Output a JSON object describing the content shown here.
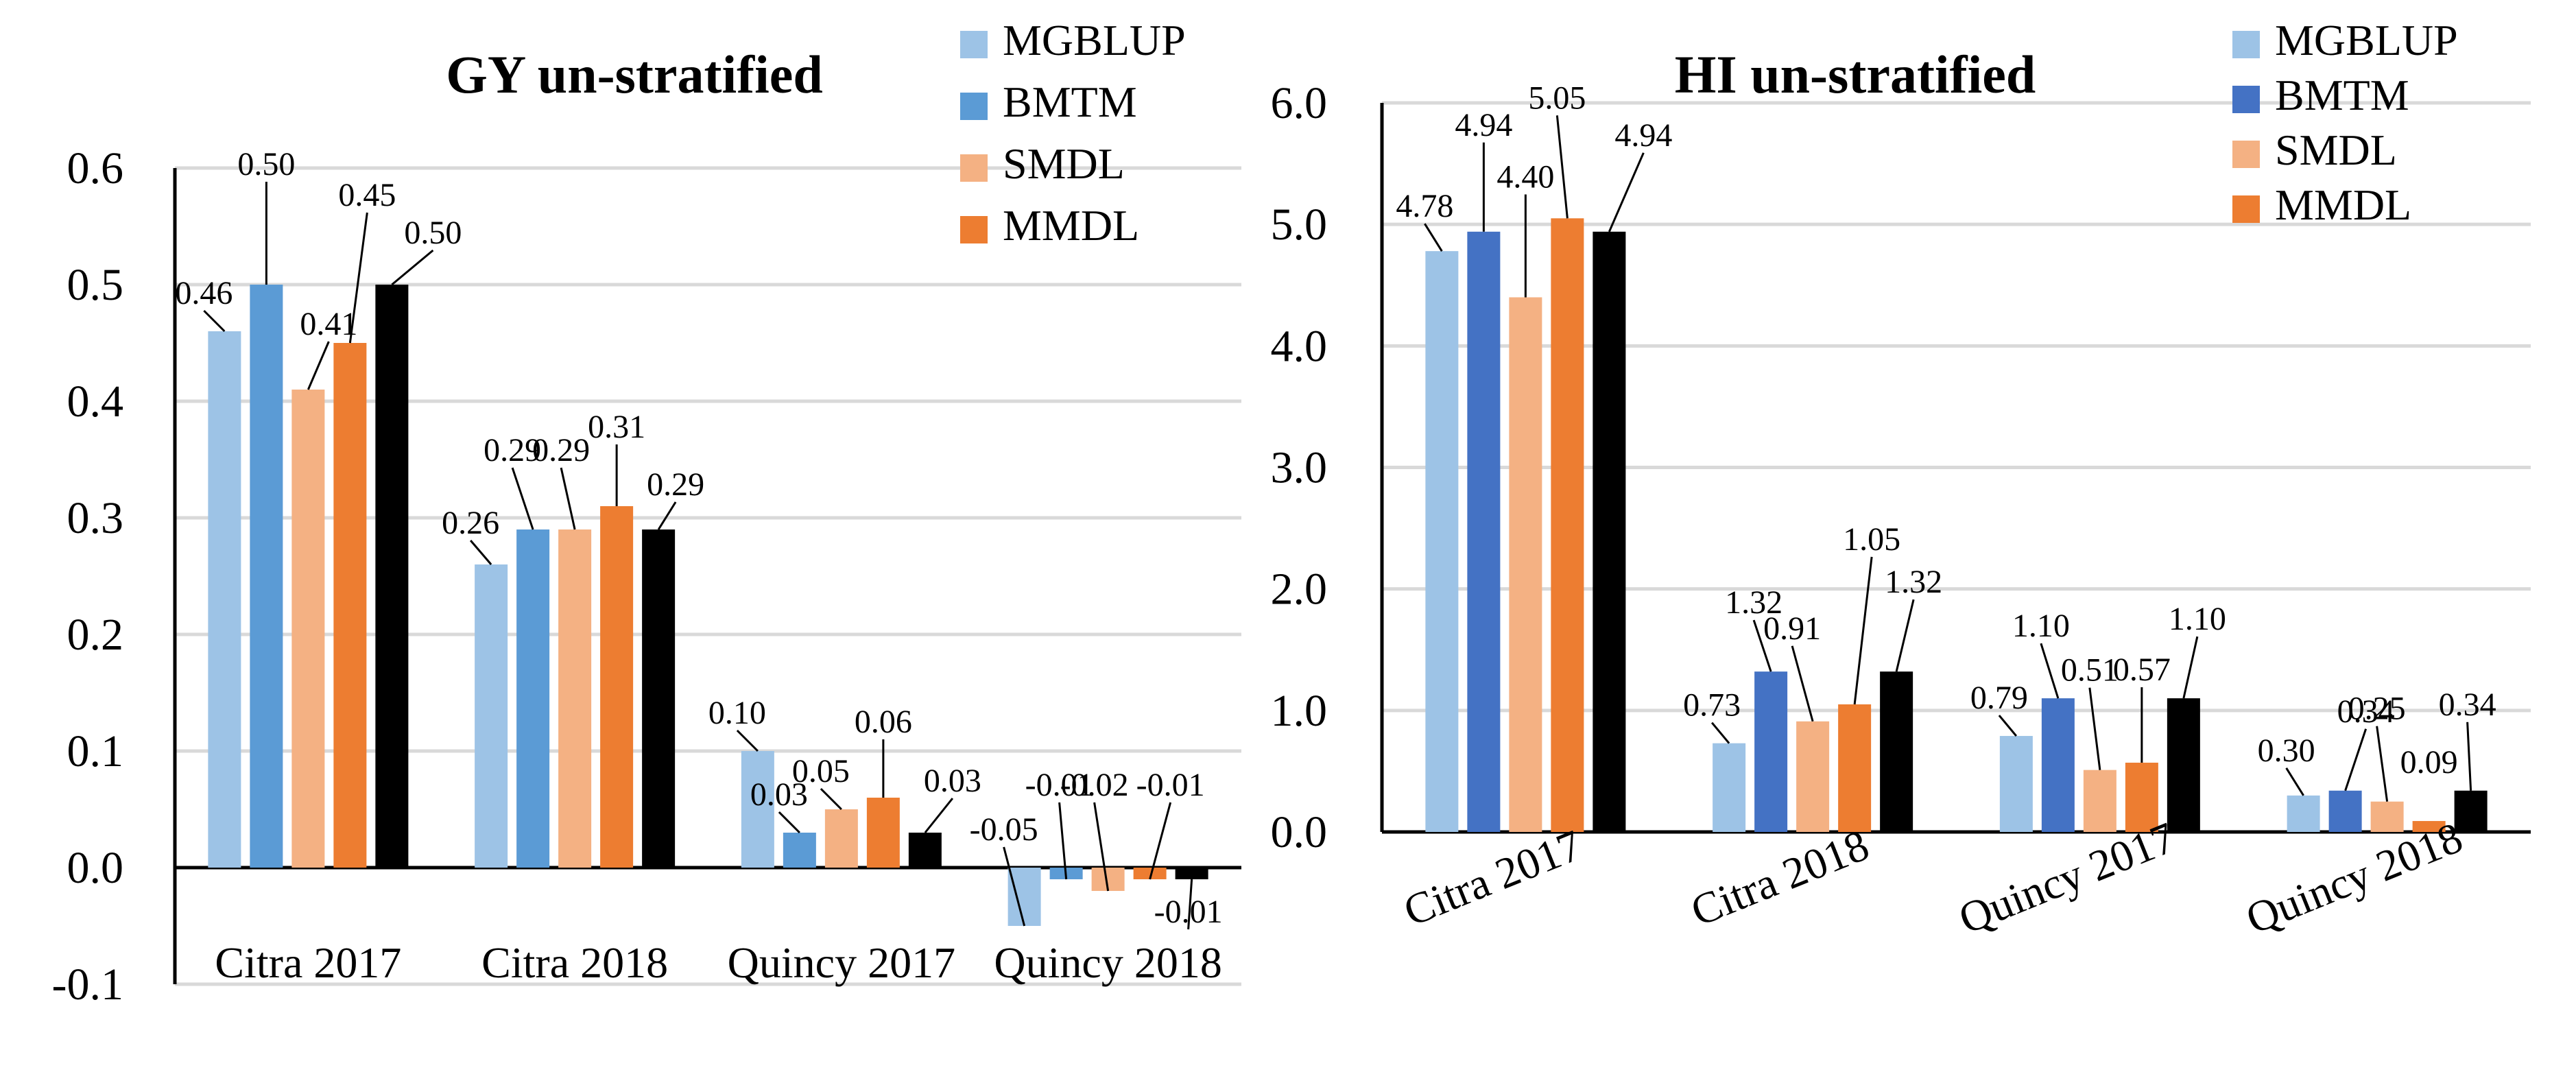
{
  "colors": {
    "MGBLUP": "#9dc3e6",
    "BMTM_left": "#5b9bd5",
    "BMTM_right": "#4472c4",
    "SMDL": "#f4b183",
    "MMDL": "#ed7d31",
    "fifth": "#000000"
  },
  "chart_data": [
    {
      "type": "bar",
      "title": "GY un-stratified",
      "categories": [
        "Citra 2017",
        "Citra 2018",
        "Quincy 2017",
        "Quincy 2018"
      ],
      "legend": [
        "MGBLUP",
        "BMTM",
        "SMDL",
        "MMDL"
      ],
      "legend_position": "top-right",
      "xlabel": "",
      "ylabel": "",
      "ylim": [
        -0.1,
        0.6
      ],
      "y_ticks": [
        "-0.1",
        "0.0",
        "0.1",
        "0.2",
        "0.3",
        "0.4",
        "0.5",
        "0.6"
      ],
      "grid": true,
      "series": [
        {
          "name": "MGBLUP",
          "values": [
            0.46,
            0.26,
            0.1,
            -0.05
          ],
          "labels": [
            "0.46",
            "0.26",
            "0.10",
            "-0.05"
          ]
        },
        {
          "name": "BMTM",
          "values": [
            0.5,
            0.29,
            0.03,
            -0.01
          ],
          "labels": [
            "0.50",
            "0.29",
            "0.03",
            "-0.01"
          ]
        },
        {
          "name": "SMDL",
          "values": [
            0.41,
            0.29,
            0.05,
            -0.02
          ],
          "labels": [
            "0.41",
            "0.29",
            "0.05",
            "-0.02"
          ]
        },
        {
          "name": "MMDL",
          "values": [
            0.45,
            0.31,
            0.06,
            -0.01
          ],
          "labels": [
            "0.45",
            "0.31",
            "0.06",
            "-0.01"
          ]
        },
        {
          "name": "",
          "values": [
            0.5,
            0.29,
            0.03,
            -0.01
          ],
          "labels": [
            "0.50",
            "0.29",
            "0.03",
            "-0.01"
          ]
        }
      ]
    },
    {
      "type": "bar",
      "title": "HI un-stratified",
      "categories": [
        "Citra 2017",
        "Citra 2018",
        "Quincy 2017",
        "Quincy 2018"
      ],
      "legend": [
        "MGBLUP",
        "BMTM",
        "SMDL",
        "MMDL"
      ],
      "legend_position": "top-right",
      "xlabel": "",
      "ylabel": "",
      "ylim": [
        0.0,
        6.0
      ],
      "y_ticks": [
        "0.0",
        "1.0",
        "2.0",
        "3.0",
        "4.0",
        "5.0",
        "6.0"
      ],
      "grid": true,
      "series": [
        {
          "name": "MGBLUP",
          "values": [
            4.78,
            0.73,
            0.79,
            0.3
          ],
          "labels": [
            "4.78",
            "0.73",
            "0.79",
            "0.30"
          ]
        },
        {
          "name": "BMTM",
          "values": [
            4.94,
            1.32,
            1.1,
            0.34
          ],
          "labels": [
            "4.94",
            "1.32",
            "1.10",
            "0.34"
          ]
        },
        {
          "name": "SMDL",
          "values": [
            4.4,
            0.91,
            0.51,
            0.25
          ],
          "labels": [
            "4.40",
            "0.91",
            "0.51",
            "0.25"
          ]
        },
        {
          "name": "MMDL",
          "values": [
            5.05,
            1.05,
            0.57,
            0.09
          ],
          "labels": [
            "5.05",
            "1.05",
            "0.57",
            "0.09"
          ]
        },
        {
          "name": "",
          "values": [
            4.94,
            1.32,
            1.1,
            0.34
          ],
          "labels": [
            "4.94",
            "1.32",
            "1.10",
            "0.34"
          ]
        }
      ]
    }
  ]
}
